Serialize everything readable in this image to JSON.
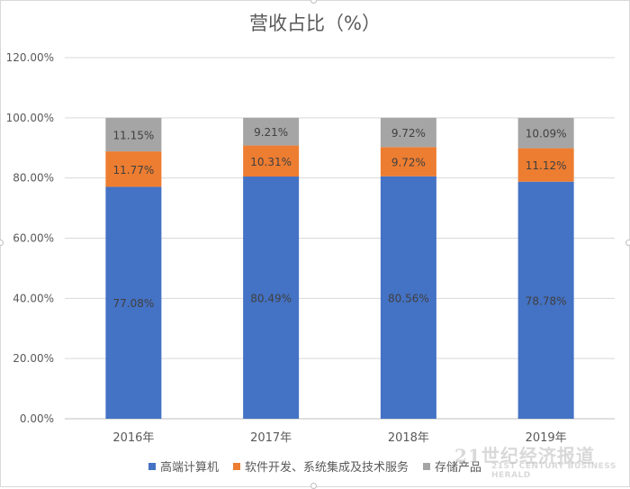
{
  "chart_data": {
    "type": "bar",
    "stacked": true,
    "title": "营收占比（%）",
    "categories": [
      "2016年",
      "2017年",
      "2018年",
      "2019年"
    ],
    "series": [
      {
        "name": "高端计算机",
        "color": "#4472c4",
        "values": [
          77.08,
          80.49,
          80.56,
          78.78
        ],
        "labels": [
          "77.08%",
          "80.49%",
          "80.56%",
          "78.78%"
        ]
      },
      {
        "name": "软件开发、系统集成及技术服务",
        "color": "#ed7d31",
        "values": [
          11.77,
          10.31,
          9.72,
          11.12
        ],
        "labels": [
          "11.77%",
          "10.31%",
          "9.72%",
          "11.12%"
        ]
      },
      {
        "name": "存储产品",
        "color": "#a5a5a5",
        "values": [
          11.15,
          9.21,
          9.72,
          10.09
        ],
        "labels": [
          "11.15%",
          "9.21%",
          "9.72%",
          "10.09%"
        ]
      }
    ],
    "ylim": [
      0,
      120
    ],
    "yticks": [
      "0.00%",
      "20.00%",
      "40.00%",
      "60.00%",
      "80.00%",
      "100.00%",
      "120.00%"
    ],
    "ytick_values": [
      0,
      20,
      40,
      60,
      80,
      100,
      120
    ],
    "grid": true,
    "legend": "bottom"
  },
  "watermark": {
    "main": "21世纪经济报道",
    "sub": "21ST CENTURY BUSINESS HERALD"
  }
}
